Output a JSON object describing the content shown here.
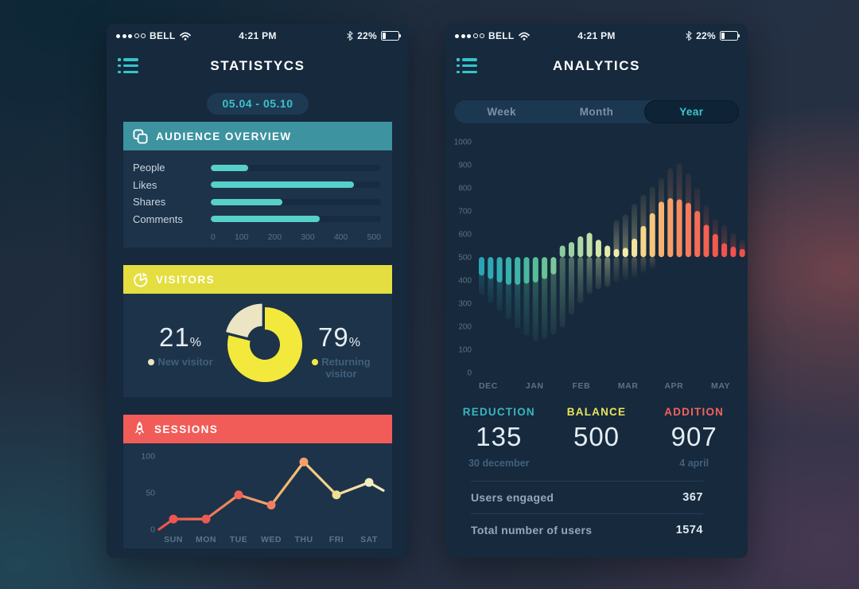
{
  "status": {
    "carrier": "BELL",
    "time": "4:21 PM",
    "battery_pct": "22%",
    "signal_filled": 3,
    "signal_total": 5,
    "icons": [
      "signal-dots",
      "wifi-icon",
      "bluetooth-icon",
      "battery-icon"
    ]
  },
  "left": {
    "title": "STATISTYCS",
    "date_range": "05.04 - 05.10",
    "audience_header": "AUDIENCE OVERVIEW",
    "visitors_header": "VISITORS",
    "sessions_header": "SESSIONS",
    "visitors_legend": {
      "new_pct": "21",
      "new_label": "New visitor",
      "new_color": "#ece5c3",
      "returning_pct": "79",
      "returning_label": "Returning visitor",
      "returning_color": "#f3e93c",
      "pct_suffix": "%"
    }
  },
  "right": {
    "title": "ANALYTICS",
    "tabs": [
      {
        "label": "Week",
        "active": false
      },
      {
        "label": "Month",
        "active": false
      },
      {
        "label": "Year",
        "active": true
      }
    ],
    "stats": [
      {
        "label": "REDUCTION",
        "value": "135",
        "sub": "30 december",
        "color": "#3ab5c0"
      },
      {
        "label": "BALANCE",
        "value": "500",
        "sub": "",
        "color": "#e9e35a"
      },
      {
        "label": "ADDITION",
        "value": "907",
        "sub": "4 april",
        "color": "#f4625c"
      }
    ],
    "rows": [
      {
        "label": "Users engaged",
        "value": "367"
      },
      {
        "label": "Total number of users",
        "value": "1574"
      }
    ]
  },
  "chart_data": [
    {
      "id": "audience",
      "type": "bar",
      "orientation": "horizontal",
      "title": "AUDIENCE OVERVIEW",
      "categories": [
        "People",
        "Likes",
        "Shares",
        "Comments"
      ],
      "values": [
        110,
        420,
        210,
        320
      ],
      "xlim": [
        0,
        500
      ],
      "xticks": [
        0,
        100,
        200,
        300,
        400,
        500
      ],
      "bar_color": "#57d0ca",
      "track_color": "#182c41",
      "grid": false
    },
    {
      "id": "visitors",
      "type": "pie",
      "donut": true,
      "title": "VISITORS",
      "labels": [
        "New visitor",
        "Returning visitor"
      ],
      "values": [
        21,
        79
      ],
      "colors": [
        "#ece5c3",
        "#f3e93c"
      ],
      "exploded_index": 0,
      "hole_color": "#1d3349",
      "start_angle_deg": 90,
      "direction": "counterclockwise"
    },
    {
      "id": "sessions",
      "type": "line",
      "title": "SESSIONS",
      "categories": [
        "SUN",
        "MON",
        "TUE",
        "WED",
        "THU",
        "FRI",
        "SAT"
      ],
      "values": [
        14,
        14,
        47,
        33,
        92,
        47,
        64
      ],
      "edge_start_value": 0,
      "edge_end_value": 53,
      "ylim": [
        0,
        100
      ],
      "yticks": [
        0,
        50,
        100
      ],
      "grid": false,
      "point_colors": [
        "#ef5550",
        "#ef5953",
        "#f0625a",
        "#f07f63",
        "#f49f69",
        "#eedf90",
        "#f2ecc2"
      ],
      "line_gradient": [
        "#ee4f4c",
        "#f0895e",
        "#f3c87e",
        "#f4eec4"
      ],
      "tick_color": "#5f7484",
      "label_color": "#5b7488"
    },
    {
      "id": "analytics",
      "type": "bar",
      "subtype": "mirrored-waveform",
      "title": "ANALYTICS",
      "period": "Year",
      "baseline": 500,
      "ylim": [
        0,
        1000
      ],
      "yticks": [
        0,
        100,
        200,
        300,
        400,
        500,
        600,
        700,
        800,
        900,
        1000
      ],
      "months": [
        {
          "label": "DEC",
          "pos": 0.75
        },
        {
          "label": "JAN",
          "pos": 5.9
        },
        {
          "label": "FEB",
          "pos": 11.1
        },
        {
          "label": "MAR",
          "pos": 16.3
        },
        {
          "label": "APR",
          "pos": 21.4
        },
        {
          "label": "MAY",
          "pos": 26.6
        }
      ],
      "min_value": 135,
      "min_at": "30 december",
      "max_value": 907,
      "max_at": "4 april",
      "tick_color": "#5b7285",
      "bars": [
        {
          "c": "#2ba4b6",
          "bright": 420,
          "shadow": 335
        },
        {
          "c": "#2da9b3",
          "bright": 405,
          "shadow": 300
        },
        {
          "c": "#30adb0",
          "bright": 390,
          "shadow": 265
        },
        {
          "c": "#36b1ab",
          "bright": 380,
          "shadow": 230
        },
        {
          "c": "#3eb4a5",
          "bright": 380,
          "shadow": 190
        },
        {
          "c": "#49b89e",
          "bright": 385,
          "shadow": 160
        },
        {
          "c": "#57bc98",
          "bright": 390,
          "shadow": 135
        },
        {
          "c": "#67c295",
          "bright": 405,
          "shadow": 145
        },
        {
          "c": "#79c798",
          "bright": 425,
          "shadow": 165
        },
        {
          "c": "#8ccb9d",
          "bright": 550,
          "shadow": 195
        },
        {
          "c": "#9dd2a0",
          "bright": 565,
          "shadow": 250
        },
        {
          "c": "#aed8a4",
          "bright": 590,
          "shadow": 300
        },
        {
          "c": "#c1dfa9",
          "bright": 605,
          "shadow": 340
        },
        {
          "c": "#d4e5ac",
          "bright": 575,
          "shadow": 360
        },
        {
          "c": "#e3eaad",
          "bright": 550,
          "shadow": 370
        },
        {
          "c": "#eeecab",
          "bright": 535,
          "shadow": 660,
          "refl": 390
        },
        {
          "c": "#f3eba6",
          "bright": 540,
          "shadow": 685,
          "refl": 400
        },
        {
          "c": "#f5e49b",
          "bright": 580,
          "shadow": 730,
          "refl": 410
        },
        {
          "c": "#f6d68b",
          "bright": 635,
          "shadow": 770,
          "refl": 430
        },
        {
          "c": "#f7c57e",
          "bright": 690,
          "shadow": 805,
          "refl": 450
        },
        {
          "c": "#f7b272",
          "bright": 740,
          "shadow": 840
        },
        {
          "c": "#f79f69",
          "bright": 755,
          "shadow": 885
        },
        {
          "c": "#f68b60",
          "bright": 750,
          "shadow": 907
        },
        {
          "c": "#f67a5b",
          "bright": 735,
          "shadow": 862
        },
        {
          "c": "#f56c55",
          "bright": 700,
          "shadow": 800
        },
        {
          "c": "#f46051",
          "bright": 640,
          "shadow": 725
        },
        {
          "c": "#f4584e",
          "bright": 600,
          "shadow": 665
        },
        {
          "c": "#f4534c",
          "bright": 560,
          "shadow": 640
        },
        {
          "c": "#f4514b",
          "bright": 545,
          "shadow": 605
        },
        {
          "c": "#f4504a",
          "bright": 535,
          "shadow": 575
        }
      ]
    }
  ]
}
